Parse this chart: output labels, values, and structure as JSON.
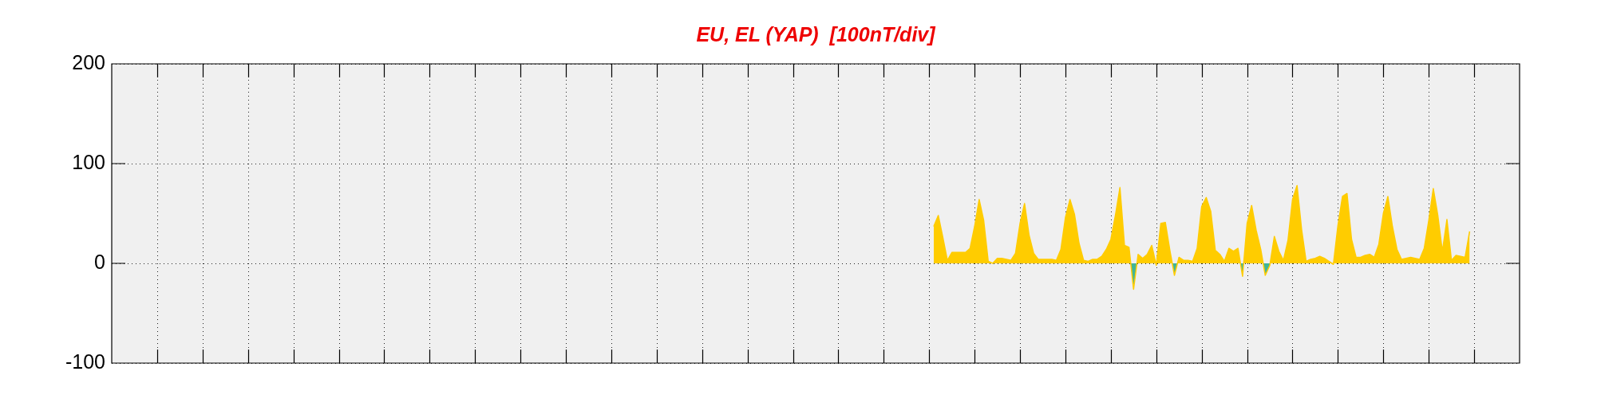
{
  "chart_data": {
    "type": "area",
    "title": "EU, EL (YAP)  [100nT/div]",
    "categories": [
      null,
      null,
      null,
      null,
      null,
      null,
      null,
      null,
      null,
      null,
      null,
      null,
      null,
      null,
      null,
      null,
      null,
      null,
      null,
      null,
      null,
      null,
      null,
      null,
      null,
      null,
      null,
      null,
      null,
      null,
      null,
      null,
      null,
      null,
      null,
      null,
      null,
      null,
      null,
      null,
      null,
      null,
      null,
      null,
      null,
      null,
      null,
      null,
      null,
      null,
      null,
      null,
      null,
      null,
      null,
      null,
      null,
      null,
      null,
      null,
      null,
      null,
      null,
      null,
      null,
      null,
      null,
      null,
      null,
      null,
      null,
      null,
      null,
      null,
      null,
      null,
      null,
      null,
      null,
      null,
      null,
      null,
      null,
      null,
      null,
      null,
      null,
      null,
      null,
      null,
      null,
      null,
      null,
      null,
      null,
      null,
      null,
      null,
      null,
      null,
      null,
      null,
      null,
      null,
      null,
      null,
      null,
      null,
      null,
      null,
      null,
      null,
      null,
      null,
      null,
      null,
      null,
      null,
      null,
      null,
      null,
      null,
      null,
      null,
      null,
      null,
      null,
      null,
      null,
      null,
      null,
      null,
      null,
      null,
      null,
      null,
      null,
      null,
      null,
      null,
      null,
      null,
      null,
      null,
      null,
      null,
      null,
      null,
      null,
      null,
      null,
      null,
      null,
      null,
      null,
      null,
      null,
      null,
      null,
      null,
      null,
      null,
      null,
      null,
      null,
      null,
      null,
      null,
      null,
      null,
      null,
      null,
      null,
      null,
      null,
      null,
      null,
      null,
      null,
      null,
      null,
      null,
      null,
      null,
      null,
      null,
      null,
      null,
      null,
      null,
      null,
      null,
      null,
      null,
      null,
      null,
      null,
      null,
      null,
      null,
      null,
      null,
      null,
      null,
      null,
      null,
      null,
      null,
      null,
      null,
      null,
      null,
      null,
      null,
      null,
      null,
      null,
      null,
      null,
      null,
      null,
      null,
      null,
      null,
      null,
      null,
      null,
      null,
      null,
      null,
      null,
      null,
      null,
      null,
      null,
      null,
      null,
      null,
      null,
      null,
      null,
      null,
      null,
      null,
      null,
      null,
      null,
      null,
      null,
      null,
      null,
      null,
      null,
      null,
      null,
      null,
      null,
      null,
      null,
      null,
      null,
      null,
      null,
      null,
      null,
      null,
      null,
      null,
      null,
      null,
      null,
      null,
      null,
      null,
      null,
      null,
      null,
      null,
      null,
      null,
      null,
      null,
      null,
      null,
      null,
      null,
      null,
      null,
      null,
      null,
      null,
      null,
      null,
      null,
      null,
      null,
      null,
      null,
      null,
      null,
      null,
      null,
      null,
      null,
      null,
      null,
      null,
      null,
      null,
      null,
      null
    ],
    "ylim": [
      -100,
      200
    ],
    "yticks": [
      -100,
      0,
      100,
      200
    ],
    "grid": true,
    "tick_labels": "y",
    "legend": false,
    "series": [
      {
        "color": "#ffcc00",
        "values": [
          null,
          null,
          null,
          null,
          null,
          null,
          null,
          null,
          null,
          null,
          null,
          null,
          null,
          null,
          null,
          null,
          null,
          null,
          null,
          null,
          null,
          null,
          null,
          null,
          null,
          null,
          null,
          null,
          null,
          null,
          null,
          null,
          null,
          null,
          null,
          null,
          null,
          null,
          null,
          null,
          null,
          null,
          null,
          null,
          null,
          null,
          null,
          null,
          null,
          null,
          null,
          null,
          null,
          null,
          null,
          null,
          null,
          null,
          null,
          null,
          null,
          null,
          null,
          null,
          null,
          null,
          null,
          null,
          null,
          null,
          null,
          null,
          null,
          null,
          null,
          null,
          null,
          null,
          null,
          null,
          null,
          null,
          null,
          null,
          null,
          null,
          null,
          null,
          null,
          null,
          null,
          null,
          null,
          null,
          null,
          null,
          null,
          null,
          null,
          null,
          null,
          null,
          null,
          null,
          null,
          null,
          null,
          null,
          null,
          null,
          null,
          null,
          null,
          null,
          null,
          null,
          null,
          null,
          null,
          null,
          null,
          null,
          null,
          null,
          null,
          null,
          null,
          null,
          null,
          null,
          null,
          null,
          null,
          null,
          null,
          null,
          null,
          null,
          null,
          null,
          null,
          null,
          null,
          null,
          null,
          null,
          null,
          null,
          null,
          null,
          null,
          null,
          null,
          null,
          null,
          null,
          null,
          null,
          null,
          null,
          null,
          null,
          null,
          null,
          null,
          null,
          null,
          null,
          null,
          null,
          null,
          null,
          null,
          null,
          null,
          null,
          null,
          null,
          null,
          null,
          null,
          37,
          48,
          26,
          3,
          11,
          11,
          11,
          11,
          15,
          37,
          64,
          43,
          2,
          0,
          5,
          5,
          4,
          3,
          10,
          40,
          60,
          28,
          10,
          4,
          4,
          4,
          4,
          3,
          14,
          46,
          64,
          49,
          20,
          3,
          2,
          4,
          4,
          7,
          14,
          24,
          48,
          76,
          18,
          16,
          -26,
          9,
          5,
          9,
          18,
          -2,
          40,
          41,
          13,
          -12,
          6,
          3,
          3,
          2,
          15,
          57,
          66,
          52,
          13,
          9,
          2,
          15,
          12,
          15,
          -13,
          40,
          58,
          33,
          14,
          -12,
          -2,
          27,
          12,
          3,
          23,
          64,
          78,
          34,
          2,
          4,
          5,
          7,
          5,
          2,
          -1,
          38,
          67,
          70,
          24,
          6,
          6,
          8,
          9,
          6,
          19,
          50,
          67,
          37,
          14,
          4,
          5,
          6,
          5,
          4,
          15,
          43,
          75,
          48,
          12,
          44,
          3,
          8,
          7,
          6,
          32,
          null,
          null,
          null,
          null,
          null,
          null,
          null,
          null,
          null,
          null,
          null
        ]
      }
    ]
  }
}
